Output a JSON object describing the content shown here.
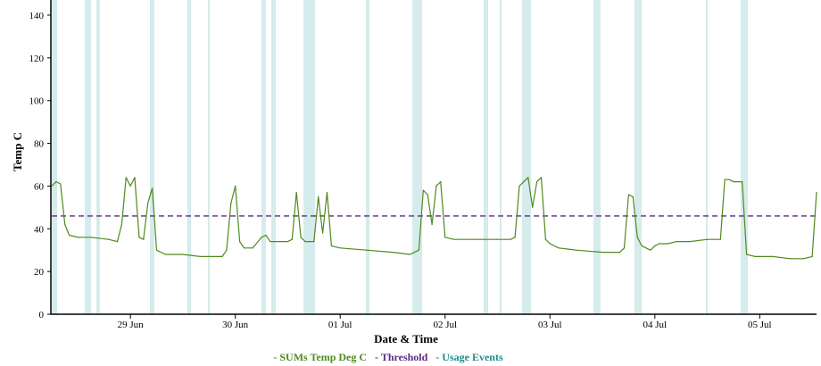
{
  "chart_data": {
    "type": "line",
    "xlabel": "Date & Time",
    "ylabel": "Temp C",
    "ylim": [
      0,
      145
    ],
    "yticks": [
      0,
      20,
      40,
      60,
      80,
      100,
      120,
      140
    ],
    "x_range_days": [
      "2025-06-28 06:00",
      "2025-07-05 13:00"
    ],
    "x_ticks": [
      {
        "date": "2025-06-29",
        "label": "29 Jun"
      },
      {
        "date": "2025-06-30",
        "label": "30 Jun"
      },
      {
        "date": "2025-07-01",
        "label": "01 Jul"
      },
      {
        "date": "2025-07-02",
        "label": "02 Jul"
      },
      {
        "date": "2025-07-03",
        "label": "03 Jul"
      },
      {
        "date": "2025-07-04",
        "label": "04 Jul"
      },
      {
        "date": "2025-07-05",
        "label": "05 Jul"
      }
    ],
    "threshold": 46,
    "colors": {
      "temp": "#4e8a1e",
      "threshold": "#5b2c83",
      "usage": "#d6ebeb",
      "usage_legend": "#1f8a8a"
    },
    "series": [
      {
        "name": "SUMs Temp Deg C",
        "points": [
          [
            "2025-06-28 06:00",
            60
          ],
          [
            "2025-06-28 07:00",
            62
          ],
          [
            "2025-06-28 08:00",
            61
          ],
          [
            "2025-06-28 09:00",
            42
          ],
          [
            "2025-06-28 10:00",
            37
          ],
          [
            "2025-06-28 12:00",
            36
          ],
          [
            "2025-06-28 15:00",
            36
          ],
          [
            "2025-06-28 19:00",
            35
          ],
          [
            "2025-06-28 21:00",
            34
          ],
          [
            "2025-06-28 22:00",
            42
          ],
          [
            "2025-06-28 23:00",
            64
          ],
          [
            "2025-06-29 00:00",
            60
          ],
          [
            "2025-06-29 01:00",
            64
          ],
          [
            "2025-06-29 02:00",
            36
          ],
          [
            "2025-06-29 03:00",
            35
          ],
          [
            "2025-06-29 04:00",
            52
          ],
          [
            "2025-06-29 05:00",
            59
          ],
          [
            "2025-06-29 06:00",
            30
          ],
          [
            "2025-06-29 08:00",
            28
          ],
          [
            "2025-06-29 12:00",
            28
          ],
          [
            "2025-06-29 16:00",
            27
          ],
          [
            "2025-06-29 21:00",
            27
          ],
          [
            "2025-06-29 22:00",
            30
          ],
          [
            "2025-06-29 23:00",
            52
          ],
          [
            "2025-06-30 00:00",
            60
          ],
          [
            "2025-06-30 01:00",
            34
          ],
          [
            "2025-06-30 02:00",
            31
          ],
          [
            "2025-06-30 04:00",
            31
          ],
          [
            "2025-06-30 06:00",
            36
          ],
          [
            "2025-06-30 07:00",
            37
          ],
          [
            "2025-06-30 08:00",
            34
          ],
          [
            "2025-06-30 12:00",
            34
          ],
          [
            "2025-06-30 13:00",
            35
          ],
          [
            "2025-06-30 14:00",
            57
          ],
          [
            "2025-06-30 15:00",
            36
          ],
          [
            "2025-06-30 16:00",
            34
          ],
          [
            "2025-06-30 18:00",
            34
          ],
          [
            "2025-06-30 19:00",
            55
          ],
          [
            "2025-06-30 20:00",
            38
          ],
          [
            "2025-06-30 21:00",
            57
          ],
          [
            "2025-06-30 22:00",
            32
          ],
          [
            "2025-07-01 00:00",
            31
          ],
          [
            "2025-07-01 06:00",
            30
          ],
          [
            "2025-07-01 12:00",
            29
          ],
          [
            "2025-07-01 16:00",
            28
          ],
          [
            "2025-07-01 18:00",
            30
          ],
          [
            "2025-07-01 19:00",
            58
          ],
          [
            "2025-07-01 20:00",
            56
          ],
          [
            "2025-07-01 21:00",
            42
          ],
          [
            "2025-07-01 22:00",
            60
          ],
          [
            "2025-07-01 23:00",
            62
          ],
          [
            "2025-07-02 00:00",
            36
          ],
          [
            "2025-07-02 02:00",
            35
          ],
          [
            "2025-07-02 08:00",
            35
          ],
          [
            "2025-07-02 12:00",
            35
          ],
          [
            "2025-07-02 15:00",
            35
          ],
          [
            "2025-07-02 16:00",
            36
          ],
          [
            "2025-07-02 17:00",
            60
          ],
          [
            "2025-07-02 18:00",
            62
          ],
          [
            "2025-07-02 19:00",
            64
          ],
          [
            "2025-07-02 20:00",
            50
          ],
          [
            "2025-07-02 21:00",
            62
          ],
          [
            "2025-07-02 22:00",
            64
          ],
          [
            "2025-07-02 23:00",
            35
          ],
          [
            "2025-07-03 00:00",
            33
          ],
          [
            "2025-07-03 02:00",
            31
          ],
          [
            "2025-07-03 06:00",
            30
          ],
          [
            "2025-07-03 12:00",
            29
          ],
          [
            "2025-07-03 16:00",
            29
          ],
          [
            "2025-07-03 17:00",
            31
          ],
          [
            "2025-07-03 18:00",
            56
          ],
          [
            "2025-07-03 19:00",
            55
          ],
          [
            "2025-07-03 20:00",
            36
          ],
          [
            "2025-07-03 21:00",
            32
          ],
          [
            "2025-07-03 23:00",
            30
          ],
          [
            "2025-07-04 00:00",
            32
          ],
          [
            "2025-07-04 01:00",
            33
          ],
          [
            "2025-07-04 03:00",
            33
          ],
          [
            "2025-07-04 05:00",
            34
          ],
          [
            "2025-07-04 08:00",
            34
          ],
          [
            "2025-07-04 12:00",
            35
          ],
          [
            "2025-07-04 15:00",
            35
          ],
          [
            "2025-07-04 16:00",
            63
          ],
          [
            "2025-07-04 17:00",
            63
          ],
          [
            "2025-07-04 18:00",
            62
          ],
          [
            "2025-07-04 19:00",
            62
          ],
          [
            "2025-07-04 20:00",
            62
          ],
          [
            "2025-07-04 21:00",
            28
          ],
          [
            "2025-07-04 23:00",
            27
          ],
          [
            "2025-07-05 03:00",
            27
          ],
          [
            "2025-07-05 07:00",
            26
          ],
          [
            "2025-07-05 10:00",
            26
          ],
          [
            "2025-07-05 12:00",
            27
          ],
          [
            "2025-07-05 13:00",
            57
          ]
        ]
      },
      {
        "name": "Threshold"
      },
      {
        "name": "Usage Events"
      }
    ]
  },
  "legend": {
    "temp_label": "- SUMs Temp Deg C",
    "threshold_label": "- Threshold",
    "usage_label": "- Usage Events"
  }
}
